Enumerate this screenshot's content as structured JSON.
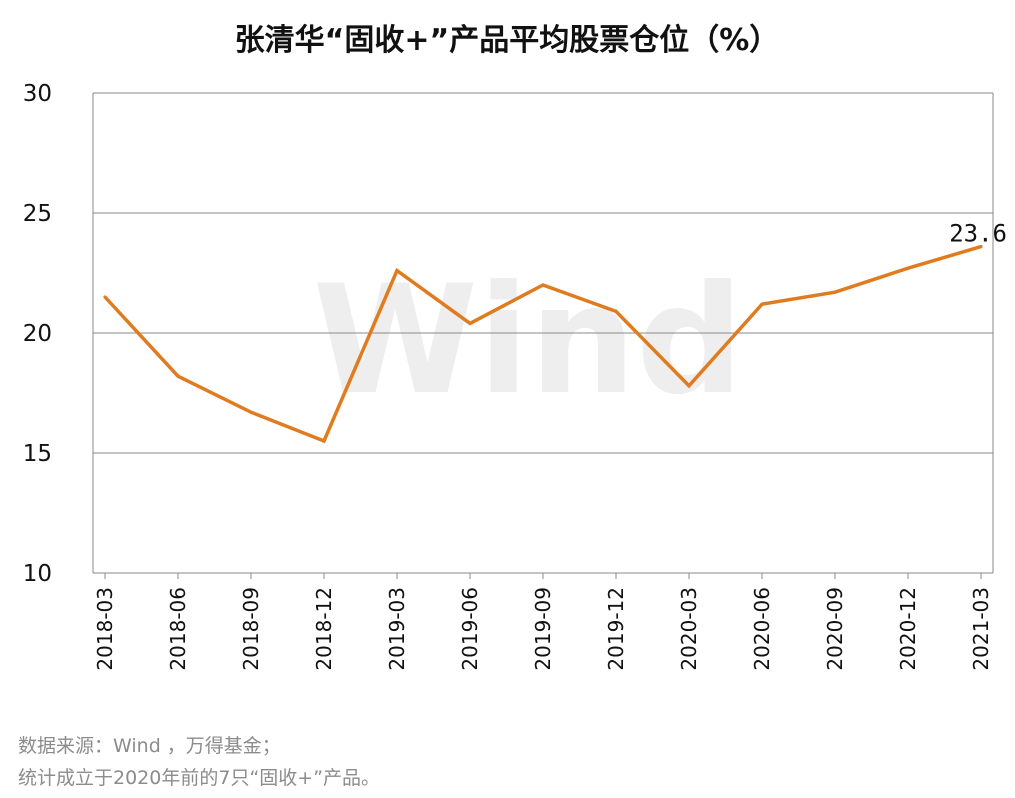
{
  "chart_data": {
    "type": "line",
    "title": "张清华“固收+”产品平均股票仓位（%）",
    "xlabel": "",
    "ylabel": "",
    "categories": [
      "2018-03",
      "2018-06",
      "2018-09",
      "2018-12",
      "2019-03",
      "2019-06",
      "2019-09",
      "2019-12",
      "2020-03",
      "2020-06",
      "2020-09",
      "2020-12",
      "2021-03"
    ],
    "series": [
      {
        "values": [
          21.5,
          18.2,
          16.7,
          15.5,
          22.6,
          20.4,
          22.0,
          20.9,
          17.8,
          21.2,
          21.7,
          22.7,
          23.6
        ]
      }
    ],
    "ylim": [
      10,
      30
    ],
    "yticks": [
      "30",
      "25",
      "20",
      "15",
      "10"
    ],
    "data_label": "23.6",
    "grid": true,
    "line_color": "#E07B1F",
    "watermark": "Wind"
  },
  "footnotes": {
    "source": "数据来源：Wind ，万得基金；",
    "scope": "统计成立于2020年前的7只“固收+”产品。"
  }
}
